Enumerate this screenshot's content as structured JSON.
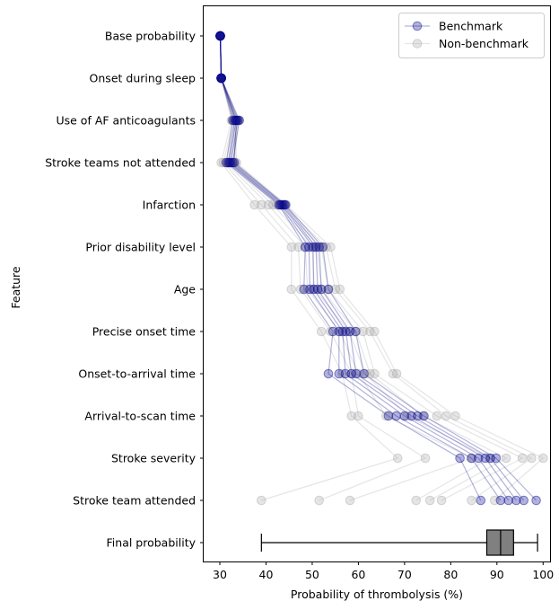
{
  "chart_data": {
    "type": "line",
    "xlabel": "Probability of thrombolysis (%)",
    "ylabel": "Feature",
    "xlim": [
      26.5,
      101.5
    ],
    "xticks": [
      30,
      40,
      50,
      60,
      70,
      80,
      90,
      100
    ],
    "features": [
      "Base probability",
      "Onset during sleep",
      "Use of AF anticoagulants",
      "Stroke teams not attended",
      "Infarction",
      "Prior disability level",
      "Age",
      "Precise onset time",
      "Onset-to-arrival time",
      "Arrival-to-scan time",
      "Stroke severity",
      "Stroke team attended",
      "Final probability"
    ],
    "legend": {
      "position": "top-right",
      "entries": [
        {
          "name": "Benchmark",
          "color": "#00008b"
        },
        {
          "name": "Non-benchmark",
          "color": "#a9a9a9"
        }
      ]
    },
    "series": [
      {
        "name": "Benchmark",
        "color": "#00008b",
        "alpha": 0.3,
        "values_by_feature": [
          [
            30.1,
            30.1,
            30.1,
            30.1,
            30.1,
            30.1
          ],
          [
            30.3,
            30.3,
            30.3,
            30.3,
            30.3,
            30.3
          ],
          [
            32.8,
            33.2,
            33.5,
            33.9,
            34.2,
            33.6
          ],
          [
            31.4,
            31.8,
            32.1,
            32.4,
            32.8,
            33.1
          ],
          [
            42.8,
            43.1,
            43.4,
            43.7,
            44.0,
            44.2
          ],
          [
            48.5,
            49.3,
            50.2,
            50.8,
            51.5,
            52.3
          ],
          [
            48.2,
            49.5,
            50.3,
            51.2,
            52.0,
            53.5
          ],
          [
            54.5,
            55.8,
            56.6,
            57.3,
            58.2,
            59.4
          ],
          [
            53.5,
            55.8,
            57.2,
            58.5,
            59.5,
            61.2
          ],
          [
            66.5,
            68.2,
            70.0,
            71.5,
            72.8,
            74.2
          ],
          [
            82.0,
            84.5,
            86.0,
            87.5,
            88.6,
            89.8
          ],
          [
            86.5,
            90.8,
            92.5,
            94.2,
            95.8,
            98.5
          ]
        ]
      },
      {
        "name": "Non-benchmark",
        "color": "#a9a9a9",
        "alpha": 0.3,
        "values_by_feature": [
          [
            30.1,
            30.1,
            30.1,
            30.1,
            30.1,
            30.1,
            30.1,
            30.1
          ],
          [
            30.3,
            30.3,
            30.3,
            30.3,
            30.3,
            30.3,
            30.3,
            30.3
          ],
          [
            32.5,
            32.9,
            33.2,
            33.6,
            33.9,
            34.2,
            33.0,
            33.4
          ],
          [
            30.3,
            30.8,
            31.3,
            31.8,
            32.3,
            32.8,
            33.3,
            33.6
          ],
          [
            37.5,
            39.0,
            40.5,
            41.5,
            42.3,
            43.0,
            43.8,
            44.4
          ],
          [
            45.5,
            47.0,
            48.5,
            50.0,
            51.0,
            52.0,
            53.0,
            54.0
          ],
          [
            45.5,
            47.5,
            49.0,
            50.5,
            52.0,
            53.5,
            55.0,
            56.0
          ],
          [
            52.0,
            54.0,
            56.0,
            58.0,
            59.5,
            61.0,
            62.5,
            63.5
          ],
          [
            56.5,
            58.5,
            60.0,
            61.5,
            62.5,
            63.5,
            67.5,
            68.3
          ],
          [
            58.5,
            60.0,
            66.0,
            70.5,
            74.0,
            77.0,
            79.0,
            81.0
          ],
          [
            68.5,
            74.5,
            84.5,
            88.5,
            92.0,
            95.5,
            97.5,
            100.0
          ],
          [
            39.0,
            51.5,
            58.2,
            72.5,
            75.5,
            78.0,
            84.5,
            89.5
          ]
        ]
      }
    ],
    "final_probability_box": {
      "min": 39.0,
      "q1": 87.8,
      "median": 90.8,
      "q3": 93.6,
      "max": 98.8,
      "color": "#808080"
    }
  }
}
